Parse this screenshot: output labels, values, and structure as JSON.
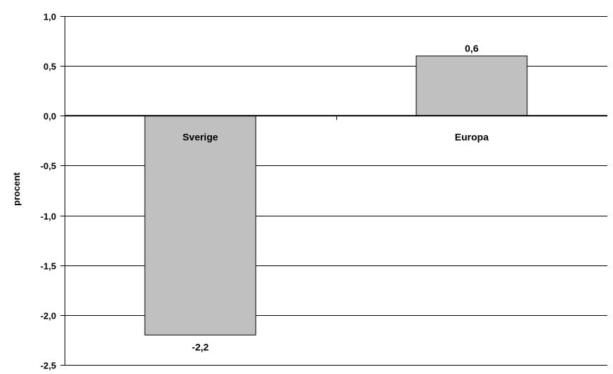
{
  "chart_data": {
    "type": "bar",
    "categories": [
      "Sverige",
      "Europa"
    ],
    "values": [
      -2.2,
      0.6
    ],
    "value_labels": [
      "-2,2",
      "0,6"
    ],
    "title": "",
    "xlabel": "",
    "ylabel": "procent",
    "ylim": [
      -2.5,
      1.0
    ],
    "yticks": [
      1.0,
      0.5,
      0.0,
      -0.5,
      -1.0,
      -1.5,
      -2.0,
      -2.5
    ],
    "ytick_labels": [
      "1,0",
      "0,5",
      "0,0",
      "-0,5",
      "-1,0",
      "-1,5",
      "-2,0",
      "-2,5"
    ],
    "grid": true,
    "legend": "none",
    "colors": {
      "bar_fill": "#c0c0c0",
      "bar_stroke": "#000000",
      "grid": "#000000",
      "axis": "#000000"
    }
  }
}
